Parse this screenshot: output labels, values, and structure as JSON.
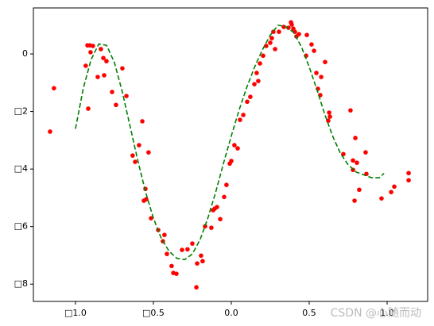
{
  "chart_data": {
    "type": "scatter_fit",
    "scatter": {
      "color": "#ff0000",
      "x": [
        -1.163,
        -1.138,
        -0.934,
        -0.923,
        -0.908,
        -0.918,
        -0.903,
        -0.888,
        -0.857,
        -0.837,
        -0.821,
        -0.816,
        -0.801,
        -0.765,
        -0.74,
        -0.699,
        -0.673,
        -0.633,
        -0.617,
        -0.592,
        -0.571,
        -0.561,
        -0.551,
        -0.546,
        -0.531,
        -0.515,
        -0.469,
        -0.439,
        -0.429,
        -0.413,
        -0.383,
        -0.372,
        -0.352,
        -0.316,
        -0.281,
        -0.25,
        -0.224,
        -0.219,
        -0.194,
        -0.184,
        -0.168,
        -0.128,
        -0.117,
        -0.107,
        -0.092,
        -0.071,
        -0.046,
        -0.031,
        -0.01,
        0,
        0.02,
        0.041,
        0.056,
        0.077,
        0.102,
        0.122,
        0.148,
        0.163,
        0.173,
        0.184,
        0.204,
        0.224,
        0.25,
        0.26,
        0.27,
        0.281,
        0.306,
        0.337,
        0.367,
        0.383,
        0.388,
        0.398,
        0.408,
        0.418,
        0.434,
        0.48,
        0.485,
        0.515,
        0.531,
        0.546,
        0.556,
        0.571,
        0.577,
        0.602,
        0.622,
        0.628,
        0.633,
        0.719,
        0.765,
        0.781,
        0.781,
        0.791,
        0.796,
        0.806,
        0.821,
        0.862,
        0.867,
        0.964,
        1.026,
        1.046,
        1.138,
        1.138
      ],
      "values": [
        -2.7,
        -1.19,
        -0.41,
        0.3,
        0.3,
        -1.9,
        0.06,
        0.28,
        -0.8,
        0.17,
        -0.14,
        -0.74,
        -0.25,
        -1.32,
        -1.77,
        -0.5,
        -1.46,
        -3.53,
        -3.75,
        -3.17,
        -2.34,
        -5.1,
        -4.69,
        -5.05,
        -3.42,
        -5.71,
        -6.12,
        -6.51,
        -6.29,
        -6.95,
        -7.37,
        -7.61,
        -7.64,
        -6.81,
        -6.79,
        -6.59,
        -8.11,
        -7.28,
        -7.01,
        -7.2,
        -5.99,
        -6.04,
        -5.43,
        -5.38,
        -5.32,
        -5.74,
        -4.97,
        -4.55,
        -3.81,
        -3.72,
        -3.17,
        -3.28,
        -2.29,
        -2.12,
        -1.66,
        -1.49,
        -1.05,
        -0.66,
        -0.94,
        -0.33,
        -0.06,
        0.28,
        0.39,
        0.55,
        0.77,
        0.17,
        0.77,
        0.94,
        0.91,
        1.1,
        1.02,
        0.88,
        0.77,
        0.61,
        0.69,
        -0.06,
        0.66,
        0.33,
        0.11,
        -0.66,
        -1.21,
        -1.43,
        -0.8,
        -0.28,
        -2.32,
        -2.04,
        -2.18,
        -3.48,
        -1.96,
        -4.03,
        -3.7,
        -5.1,
        -2.92,
        -3.78,
        -4.72,
        -3.42,
        -4.17,
        -5.02,
        -4.8,
        -4.61,
        -4.39,
        -4.14
      ]
    },
    "fit": {
      "color": "#008000",
      "x": [
        -1.0,
        -0.95,
        -0.9,
        -0.85,
        -0.8,
        -0.75,
        -0.7,
        -0.65,
        -0.6,
        -0.55,
        -0.5,
        -0.45,
        -0.4,
        -0.35,
        -0.3,
        -0.25,
        -0.2,
        -0.15,
        -0.1,
        -0.05,
        0,
        0.05,
        0.1,
        0.15,
        0.2,
        0.25,
        0.3,
        0.35,
        0.4,
        0.45,
        0.5,
        0.55,
        0.6,
        0.65,
        0.7,
        0.75,
        0.8,
        0.85,
        0.9,
        0.95,
        0.98
      ],
      "values": [
        -2.6,
        -1.2,
        -0.2,
        0.35,
        0.3,
        -0.3,
        -1.3,
        -2.5,
        -3.7,
        -4.8,
        -5.7,
        -6.4,
        -6.85,
        -7.1,
        -7.15,
        -6.95,
        -6.45,
        -5.7,
        -4.8,
        -3.8,
        -2.85,
        -1.95,
        -1.15,
        -0.45,
        0.15,
        0.65,
        1.0,
        0.95,
        0.75,
        0.25,
        -0.45,
        -1.25,
        -2.1,
        -2.85,
        -3.45,
        -3.85,
        -4.1,
        -4.2,
        -4.3,
        -4.3,
        -4.15
      ]
    },
    "xlim": [
      -1.27,
      1.26
    ],
    "ylim": [
      -8.6,
      1.6
    ],
    "xticks": [
      {
        "value": -1.0,
        "label": "□1.0"
      },
      {
        "value": -0.5,
        "label": "□0.5"
      },
      {
        "value": 0.0,
        "label": "0.0"
      },
      {
        "value": 0.5,
        "label": "0.5"
      },
      {
        "value": 1.0,
        "label": "1.0"
      }
    ],
    "yticks": [
      0,
      {
        "value": -2,
        "label": "□2"
      },
      {
        "value": -4,
        "label": "□4"
      },
      {
        "value": -6,
        "label": "□6"
      },
      {
        "value": -8,
        "label": "□8"
      }
    ],
    "watermark": "CSDN @心随而动"
  }
}
